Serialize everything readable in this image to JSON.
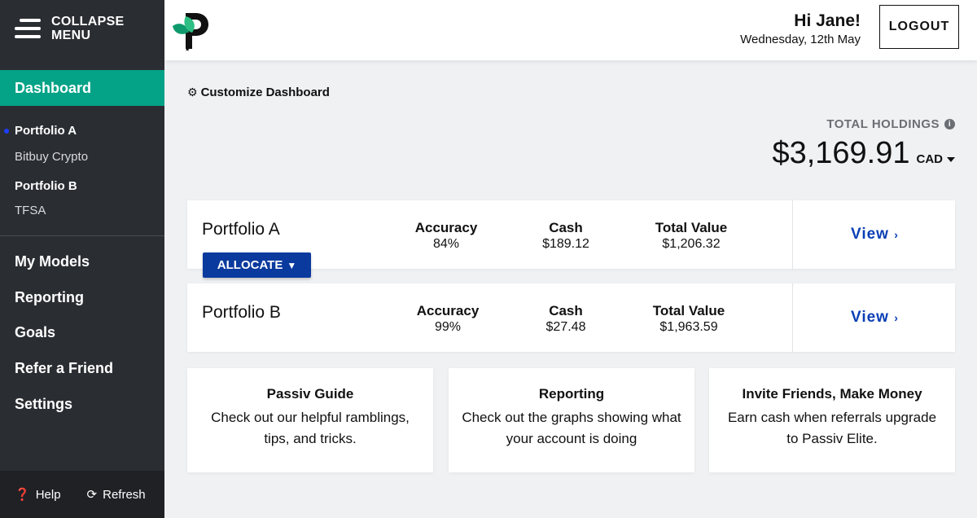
{
  "sidebar": {
    "collapse_label": "COLLAPSE MENU",
    "dashboard_label": "Dashboard",
    "accounts": [
      {
        "name": "Portfolio A"
      },
      {
        "name": "Bitbuy Crypto"
      },
      {
        "name": "Portfolio B"
      },
      {
        "name": "TFSA"
      }
    ],
    "nav": [
      "My Models",
      "Reporting",
      "Goals",
      "Refer a Friend",
      "Settings"
    ],
    "footer": {
      "help": "Help",
      "refresh": "Refresh"
    },
    "colors": {
      "bg": "#2a2d32",
      "active": "#04a287"
    }
  },
  "header": {
    "greeting": "Hi Jane!",
    "date": "Wednesday, 12th May",
    "logout": "LOGOUT"
  },
  "main": {
    "customize": "Customize Dashboard",
    "holdings": {
      "label": "TOTAL HOLDINGS",
      "value": "$3,169.91",
      "currency": "CAD"
    },
    "portfolios": [
      {
        "name": "Portfolio A",
        "accuracy_label": "Accuracy",
        "accuracy": "84%",
        "cash_label": "Cash",
        "cash": "$189.12",
        "total_label": "Total Value",
        "total": "$1,206.32",
        "view": "View",
        "allocate": "ALLOCATE"
      },
      {
        "name": "Portfolio B",
        "accuracy_label": "Accuracy",
        "accuracy": "99%",
        "cash_label": "Cash",
        "cash": "$27.48",
        "total_label": "Total Value",
        "total": "$1,963.59",
        "view": "View"
      }
    ],
    "cards": [
      {
        "title": "Passiv Guide",
        "desc": "Check out our helpful ramblings, tips, and tricks."
      },
      {
        "title": "Reporting",
        "desc": "Check out the graphs showing what your account is doing"
      },
      {
        "title": "Invite Friends, Make Money",
        "desc": "Earn cash when referrals upgrade to Passiv Elite."
      }
    ]
  }
}
